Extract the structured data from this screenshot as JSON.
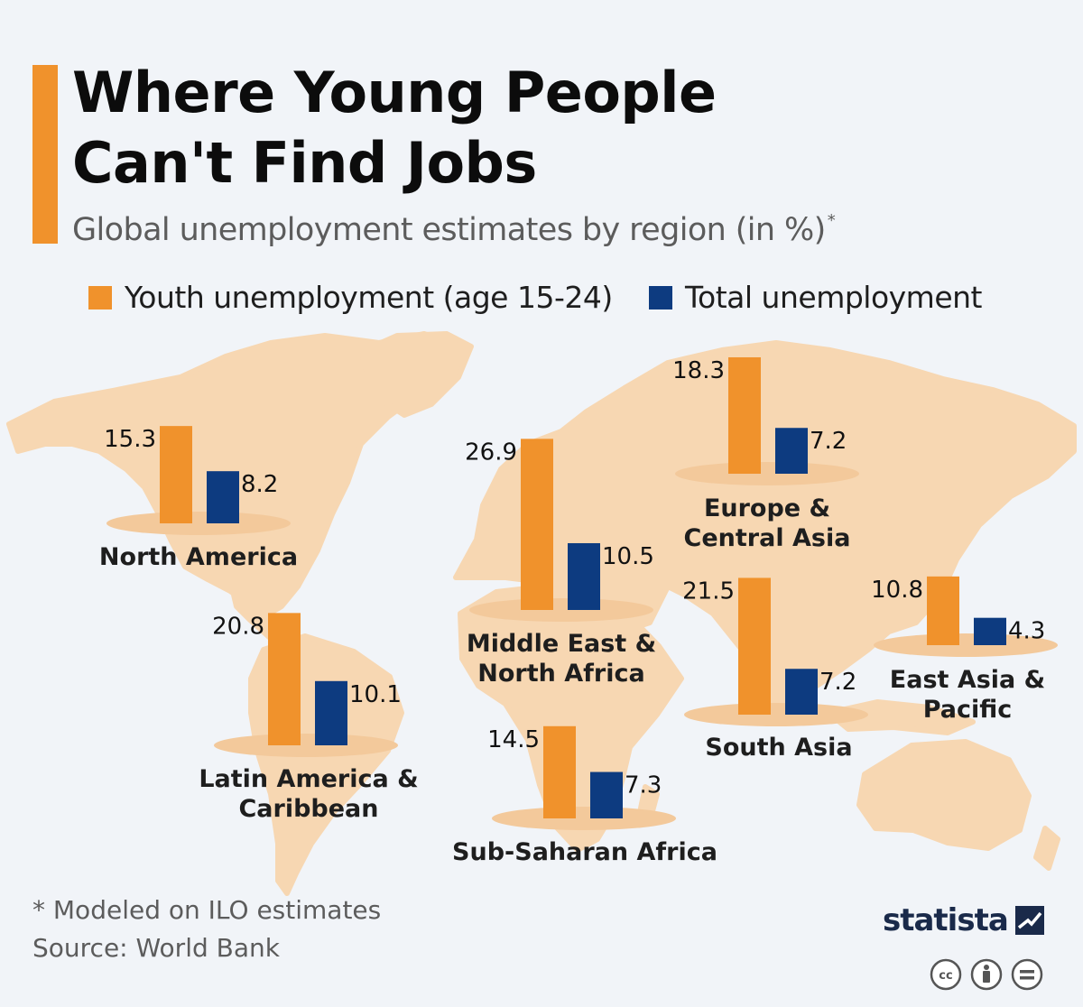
{
  "title": "Where Young People Can't Find Jobs",
  "subtitle": "Global unemployment estimates by region (in %)",
  "subtitle_marker": "*",
  "colors": {
    "youth": "#f0922c",
    "total": "#0d3b80",
    "land": "#f7d7b2",
    "accent": "#f0922c",
    "background": "#f1f4f8"
  },
  "chart_data": {
    "type": "bar",
    "title": "Where Young People Can't Find Jobs",
    "subtitle": "Global unemployment estimates by region (in %)",
    "categories": [
      "North America",
      "Latin America & Caribbean",
      "Middle East & North Africa",
      "Sub-Saharan Africa",
      "Europe & Central Asia",
      "South Asia",
      "East Asia & Pacific"
    ],
    "series": [
      {
        "name": "Youth unemployment (age 15-24)",
        "color": "#f0922c",
        "values": [
          15.3,
          20.8,
          26.9,
          14.5,
          18.3,
          21.5,
          10.8
        ]
      },
      {
        "name": "Total unemployment",
        "color": "#0d3b80",
        "values": [
          8.2,
          10.1,
          10.5,
          7.3,
          7.2,
          7.2,
          4.3
        ]
      }
    ],
    "regions": [
      {
        "label_lines": [
          "North America"
        ]
      },
      {
        "label_lines": [
          "Latin America &",
          "Caribbean"
        ]
      },
      {
        "label_lines": [
          "Middle East &",
          "North Africa"
        ]
      },
      {
        "label_lines": [
          "Sub-Saharan Africa"
        ]
      },
      {
        "label_lines": [
          "Europe &",
          "Central Asia"
        ]
      },
      {
        "label_lines": [
          "South Asia"
        ]
      },
      {
        "label_lines": [
          "East Asia &",
          "Pacific"
        ]
      }
    ],
    "legend_position": "top",
    "grid": false
  },
  "legend": {
    "youth_label": "Youth unemployment (age 15-24)",
    "total_label": "Total unemployment"
  },
  "footer": {
    "footnote": "* Modeled on ILO estimates",
    "source": "Source: World Bank",
    "brand": "statista",
    "license_icons": [
      "cc-icon",
      "attribution-icon",
      "no-derivatives-icon"
    ]
  }
}
